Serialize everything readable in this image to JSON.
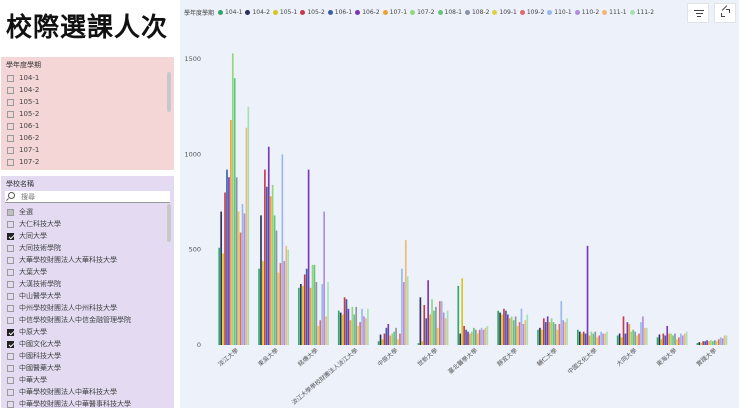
{
  "page_title": "校際選課人次",
  "term_slicer": {
    "title": "學年度學期",
    "items": [
      {
        "label": "104-1",
        "checked": false
      },
      {
        "label": "104-2",
        "checked": false
      },
      {
        "label": "105-1",
        "checked": false
      },
      {
        "label": "105-2",
        "checked": false
      },
      {
        "label": "106-1",
        "checked": false
      },
      {
        "label": "106-2",
        "checked": false
      },
      {
        "label": "107-1",
        "checked": false
      },
      {
        "label": "107-2",
        "checked": false
      }
    ]
  },
  "school_slicer": {
    "title": "學校名稱",
    "search_placeholder": "搜尋",
    "items": [
      {
        "label": "全選",
        "state": "partial"
      },
      {
        "label": "大仁科技大學",
        "state": "off"
      },
      {
        "label": "大同大學",
        "state": "on"
      },
      {
        "label": "大同技術學院",
        "state": "off"
      },
      {
        "label": "大華學校財團法人大華科技大學",
        "state": "off"
      },
      {
        "label": "大葉大學",
        "state": "off"
      },
      {
        "label": "大漢技術學院",
        "state": "off"
      },
      {
        "label": "中山醫學大學",
        "state": "off"
      },
      {
        "label": "中州學校財團法人中州科技大學",
        "state": "off"
      },
      {
        "label": "中信學校財團法人中信金融管理學院",
        "state": "off"
      },
      {
        "label": "中原大學",
        "state": "on"
      },
      {
        "label": "中國文化大學",
        "state": "on"
      },
      {
        "label": "中國科技大學",
        "state": "off"
      },
      {
        "label": "中國醫藥大學",
        "state": "off"
      },
      {
        "label": "中華大學",
        "state": "off"
      },
      {
        "label": "中華學校財團法人中華科技大學",
        "state": "off"
      },
      {
        "label": "中華學校財團法人中華醫事科技大學",
        "state": "off"
      }
    ]
  },
  "toolbar": {
    "filter_icon": "filter-lines-icon",
    "focus_icon": "focus-mode-icon"
  },
  "chart_data": {
    "type": "bar",
    "legend_title": "學年度學期",
    "legend_position": "top-left",
    "grid": false,
    "ylim": [
      0,
      1600
    ],
    "yticks": [
      0,
      500,
      1000,
      1500
    ],
    "categories": [
      "淡江大學",
      "東吳大學",
      "銘傳大學",
      "淡江大學學校財團法人淡江大學",
      "中原大學",
      "世新大學",
      "臺北醫學大學",
      "靜宜大學",
      "輔仁大學",
      "中國文化大學",
      "大同大學",
      "東海大學",
      "實踐大學"
    ],
    "series": [
      {
        "name": "104-1",
        "color": "#2ea869",
        "values": [
          510,
          400,
          300,
          180,
          20,
          10,
          310,
          180,
          80,
          80,
          50,
          40,
          10
        ]
      },
      {
        "name": "104-2",
        "color": "#2b2f5e",
        "values": [
          700,
          680,
          320,
          170,
          55,
          250,
          60,
          170,
          90,
          70,
          60,
          55,
          15
        ]
      },
      {
        "name": "105-1",
        "color": "#d8c61a",
        "values": [
          480,
          440,
          310,
          160,
          30,
          20,
          350,
          160,
          80,
          60,
          40,
          30,
          10
        ]
      },
      {
        "name": "105-2",
        "color": "#c9384a",
        "values": [
          800,
          920,
          370,
          250,
          60,
          210,
          100,
          190,
          140,
          70,
          150,
          60,
          20
        ]
      },
      {
        "name": "106-1",
        "color": "#3a5fa8",
        "values": [
          920,
          830,
          400,
          240,
          90,
          140,
          80,
          180,
          120,
          60,
          60,
          50,
          20
        ]
      },
      {
        "name": "106-2",
        "color": "#7b35b8",
        "values": [
          880,
          1040,
          920,
          190,
          110,
          340,
          70,
          160,
          150,
          520,
          120,
          100,
          25
        ]
      },
      {
        "name": "107-1",
        "color": "#f0a030",
        "values": [
          1180,
          780,
          300,
          130,
          50,
          160,
          60,
          140,
          120,
          50,
          110,
          60,
          20
        ]
      },
      {
        "name": "107-2",
        "color": "#8fd97a",
        "values": [
          1530,
          840,
          420,
          200,
          60,
          240,
          70,
          150,
          140,
          70,
          70,
          60,
          25
        ]
      },
      {
        "name": "108-1",
        "color": "#69c47a",
        "values": [
          1400,
          680,
          420,
          160,
          70,
          180,
          90,
          130,
          120,
          60,
          80,
          50,
          20
        ]
      },
      {
        "name": "108-2",
        "color": "#8a93a8",
        "values": [
          880,
          600,
          330,
          200,
          90,
          200,
          80,
          150,
          110,
          70,
          70,
          60,
          25
        ]
      },
      {
        "name": "109-1",
        "color": "#e0cf40",
        "values": [
          700,
          380,
          100,
          100,
          30,
          90,
          60,
          100,
          80,
          40,
          50,
          30,
          20
        ]
      },
      {
        "name": "109-2",
        "color": "#e06a6e",
        "values": [
          590,
          430,
          130,
          120,
          60,
          230,
          80,
          120,
          110,
          50,
          60,
          40,
          30
        ]
      },
      {
        "name": "110-1",
        "color": "#9ab7ec",
        "values": [
          740,
          1000,
          320,
          190,
          400,
          230,
          90,
          190,
          230,
          70,
          120,
          60,
          40
        ]
      },
      {
        "name": "110-2",
        "color": "#b18be0",
        "values": [
          690,
          440,
          700,
          150,
          330,
          170,
          80,
          110,
          130,
          60,
          150,
          50,
          35
        ]
      },
      {
        "name": "111-1",
        "color": "#f2b878",
        "values": [
          1140,
          520,
          150,
          140,
          550,
          140,
          90,
          130,
          120,
          60,
          90,
          60,
          50
        ]
      },
      {
        "name": "111-2",
        "color": "#a6e2b0",
        "values": [
          1250,
          500,
          330,
          190,
          360,
          180,
          100,
          160,
          140,
          70,
          90,
          70,
          50
        ]
      }
    ]
  }
}
